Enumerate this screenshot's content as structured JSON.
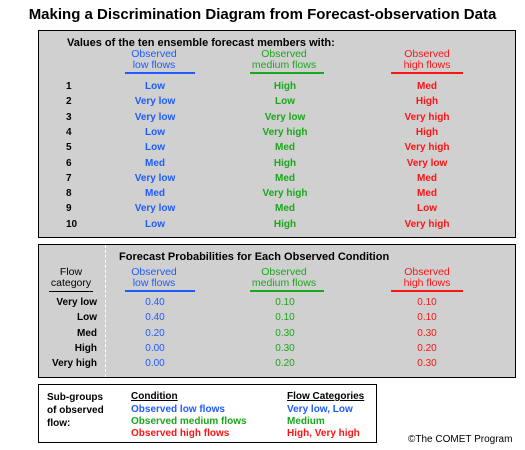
{
  "title": "Making a Discrimination Diagram from Forecast-observation Data",
  "top_panel": {
    "heading": "Values of the ten ensemble forecast members with:",
    "columns": [
      {
        "label_line1": "Observed",
        "label_line2": "low flows",
        "color": "#1e5cff"
      },
      {
        "label_line1": "Observed",
        "label_line2": "medium flows",
        "color": "#1aa81a"
      },
      {
        "label_line1": "Observed",
        "label_line2": "high flows",
        "color": "#ff1414"
      }
    ],
    "rows": [
      {
        "n": "1",
        "low": "Low",
        "medium": "High",
        "high": "Med"
      },
      {
        "n": "2",
        "low": "Very low",
        "medium": "Low",
        "high": "High"
      },
      {
        "n": "3",
        "low": "Very low",
        "medium": "Very low",
        "high": "Very high"
      },
      {
        "n": "4",
        "low": "Low",
        "medium": "Very high",
        "high": "High"
      },
      {
        "n": "5",
        "low": "Low",
        "medium": "Med",
        "high": "Very high"
      },
      {
        "n": "6",
        "low": "Med",
        "medium": "High",
        "high": "Very low"
      },
      {
        "n": "7",
        "low": "Very low",
        "medium": "Med",
        "high": "Med"
      },
      {
        "n": "8",
        "low": "Med",
        "medium": "Very high",
        "high": "Med"
      },
      {
        "n": "9",
        "low": "Very low",
        "medium": "Med",
        "high": "Low"
      },
      {
        "n": "10",
        "low": "Low",
        "medium": "High",
        "high": "Very high"
      }
    ]
  },
  "prob_panel": {
    "heading": "Forecast Probabilities for Each Observed Condition",
    "flow_label_line1": "Flow",
    "flow_label_line2": "category",
    "columns": [
      {
        "label_line1": "Observed",
        "label_line2": "low flows"
      },
      {
        "label_line1": "Observed",
        "label_line2": "medium flows"
      },
      {
        "label_line1": "Observed",
        "label_line2": "high flows"
      }
    ],
    "rows": [
      {
        "cat": "Very low",
        "low": "0.40",
        "medium": "0.10",
        "high": "0.10"
      },
      {
        "cat": "Low",
        "low": "0.40",
        "medium": "0.10",
        "high": "0.10"
      },
      {
        "cat": "Med",
        "low": "0.20",
        "medium": "0.30",
        "high": "0.30"
      },
      {
        "cat": "High",
        "low": "0.00",
        "medium": "0.30",
        "high": "0.20"
      },
      {
        "cat": "Very high",
        "low": "0.00",
        "medium": "0.20",
        "high": "0.30"
      }
    ]
  },
  "legend": {
    "label_line1": "Sub-groups",
    "label_line2": "of observed",
    "label_line3": "flow:",
    "condition_header": "Condition",
    "categories_header": "Flow Categories",
    "items": [
      {
        "condition": "Observed low flows",
        "categories": "Very low, Low"
      },
      {
        "condition": "Observed medium flows",
        "categories": "Medium"
      },
      {
        "condition": "Observed high flows",
        "categories": "High, Very high"
      }
    ]
  },
  "copyright": "©The COMET Program"
}
